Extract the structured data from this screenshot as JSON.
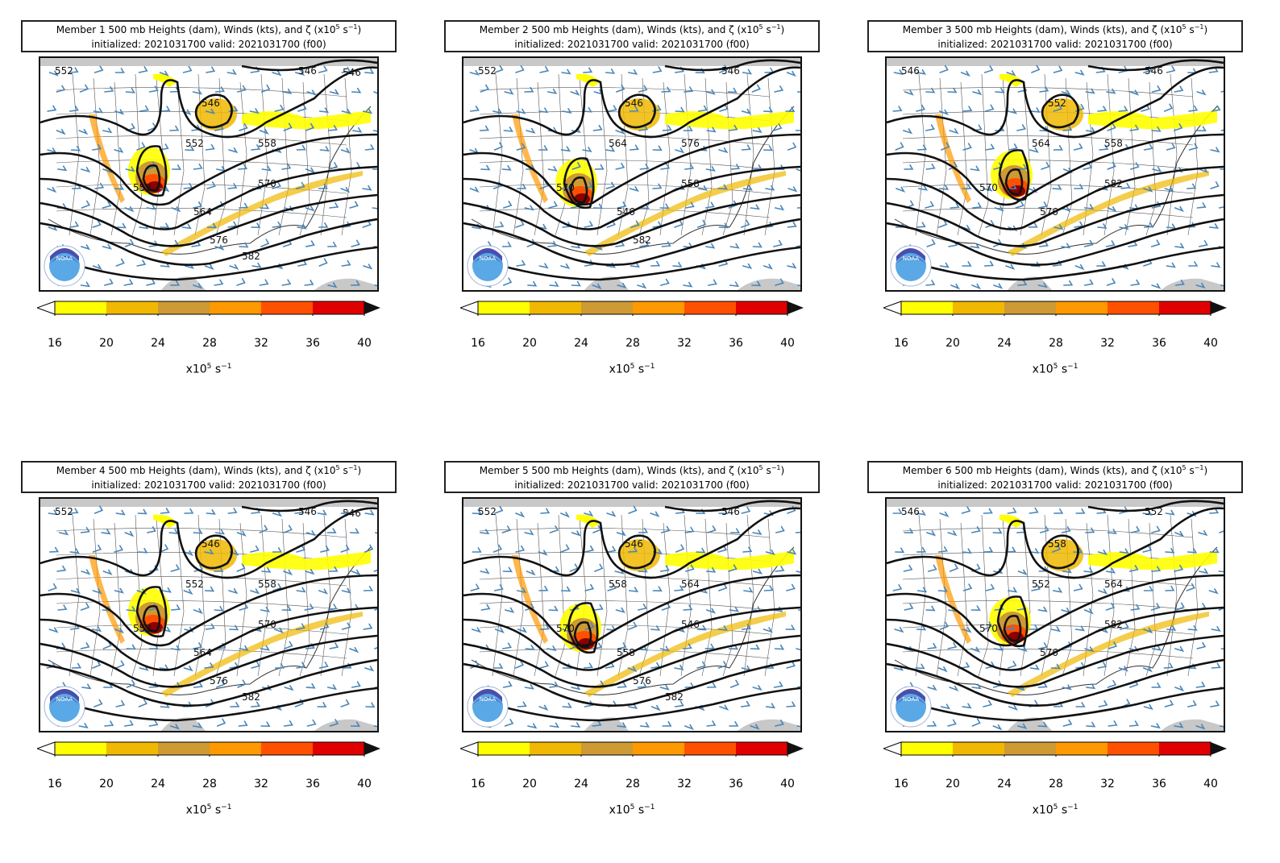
{
  "panels": [
    {
      "title1": "Member 1 500 mb Heights (dam), Winds (kts), and ζ (x10",
      "title_sup": "5",
      "title_tail": " s",
      "title_sup2": "−1",
      "title_end": ")",
      "title2": "initialized: 2021031700 valid: 2021031700 (f00)",
      "contour_labels": [
        "552",
        "546",
        "546",
        "552",
        "558",
        "552",
        "564",
        "570",
        "576",
        "582",
        "546"
      ]
    },
    {
      "title1": "Member 2 500 mb Heights (dam), Winds (kts), and ζ (x10",
      "title_sup": "5",
      "title_tail": " s",
      "title_sup2": "−1",
      "title_end": ")",
      "title2": "initialized: 2021031700 valid: 2021031700 (f00)",
      "contour_labels": [
        "552",
        "546",
        "546",
        "564",
        "576",
        "570",
        "546",
        "558",
        "582"
      ]
    },
    {
      "title1": "Member 3 500 mb Heights (dam), Winds (kts), and ζ (x10",
      "title_sup": "5",
      "title_tail": " s",
      "title_sup2": "−1",
      "title_end": ")",
      "title2": "initialized: 2021031700 valid: 2021031700 (f00)",
      "contour_labels": [
        "546",
        "546",
        "552",
        "564",
        "558",
        "570",
        "576",
        "582"
      ]
    },
    {
      "title1": "Member 4 500 mb Heights (dam), Winds (kts), and ζ (x10",
      "title_sup": "5",
      "title_tail": " s",
      "title_sup2": "−1",
      "title_end": ")",
      "title2": "initialized: 2021031700 valid: 2021031700 (f00)",
      "contour_labels": [
        "552",
        "546",
        "546",
        "552",
        "558",
        "552",
        "564",
        "570",
        "576",
        "582",
        "546"
      ]
    },
    {
      "title1": "Member 5 500 mb Heights (dam), Winds (kts), and ζ (x10",
      "title_sup": "5",
      "title_tail": " s",
      "title_sup2": "−1",
      "title_end": ")",
      "title2": "initialized: 2021031700 valid: 2021031700 (f00)",
      "contour_labels": [
        "552",
        "546",
        "546",
        "558",
        "564",
        "570",
        "558",
        "546",
        "576",
        "582"
      ]
    },
    {
      "title1": "Member 6 500 mb Heights (dam), Winds (kts), and ζ (x10",
      "title_sup": "5",
      "title_tail": " s",
      "title_sup2": "−1",
      "title_end": ")",
      "title2": "initialized: 2021031700 valid: 2021031700 (f00)",
      "contour_labels": [
        "546",
        "552",
        "558",
        "552",
        "564",
        "570",
        "576",
        "582"
      ]
    }
  ],
  "colorbar": {
    "ticks": [
      "16",
      "20",
      "24",
      "28",
      "32",
      "36",
      "40"
    ],
    "colors": [
      "#ffff00",
      "#f0b800",
      "#cd9a33",
      "#ff9900",
      "#ff5000",
      "#e00000"
    ],
    "under_color": "#ffffff",
    "over_color": "#111111",
    "label": "x10",
    "label_sup": "5",
    "label_tail": " s",
    "label_sup2": "−1"
  },
  "logo_text": "NOAA",
  "colors": {
    "contour": "#111111",
    "barb": "#4a86b8",
    "border": "#222222",
    "land_gray": "#c8c8c8"
  }
}
